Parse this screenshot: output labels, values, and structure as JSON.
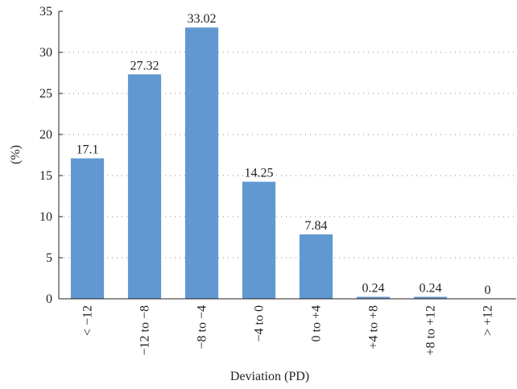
{
  "chart_data": {
    "type": "bar",
    "categories": [
      "< −12",
      "−12 to −8",
      "−8 to −4",
      "−4 to 0",
      "0 to +4",
      "+4 to +8",
      "+8 to +12",
      "> +12"
    ],
    "values": [
      17.1,
      27.32,
      33.02,
      14.25,
      7.84,
      0.24,
      0.24,
      0
    ],
    "color": "#6298d2",
    "x_label": "Deviation (PD)",
    "y_label": "(%)",
    "ylim": [
      0,
      35
    ],
    "yticks": [
      0,
      5,
      10,
      15,
      20,
      25,
      30,
      35
    ],
    "grid": true
  }
}
